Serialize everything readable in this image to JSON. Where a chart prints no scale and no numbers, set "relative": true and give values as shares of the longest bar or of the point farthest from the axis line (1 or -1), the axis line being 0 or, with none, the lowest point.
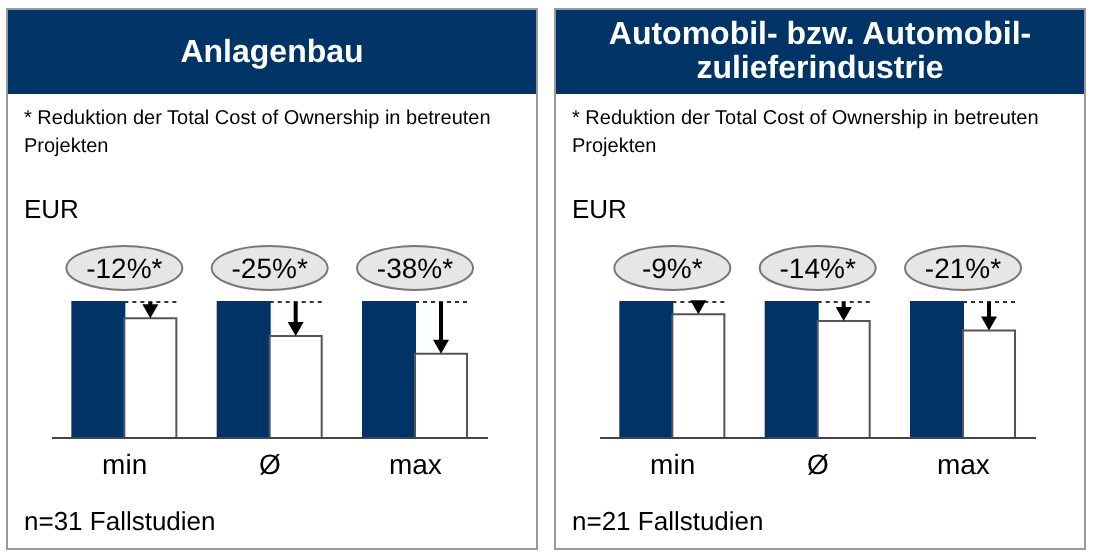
{
  "chart_data": [
    {
      "type": "bar",
      "title": "Anlagenbau",
      "subtitle": "* Reduktion der Total Cost of Ownership in betreuten Projekten",
      "ylabel": "EUR",
      "annotations": [
        "n=31 Fallstudien",
        {
          "text": "-12%*",
          "x": "min",
          "y": 0.88
        },
        {
          "text": "-25%*",
          "x": "Ø",
          "y": 0.75
        },
        {
          "text": "-38%*",
          "x": "max",
          "y": 0.62
        }
      ],
      "relative": true,
      "categories": [
        "min",
        "Ø",
        "max"
      ],
      "series": [
        {
          "color": "#003366",
          "values": [
            1,
            1,
            1
          ]
        },
        {
          "color": "#ffffff",
          "values": [
            0.88,
            0.75,
            0.62
          ]
        }
      ]
    },
    {
      "type": "bar",
      "title": "Automobil- bzw. Automobil-zulieferindustrie",
      "subtitle": "* Reduktion der Total Cost of Ownership in betreuten Projekten",
      "ylabel": "EUR",
      "annotations": [
        "n=21 Fallstudien",
        {
          "text": "-9%*",
          "x": "min",
          "y": 0.91
        },
        {
          "text": "-14%*",
          "x": "Ø",
          "y": 0.86
        },
        {
          "text": "-21%*",
          "x": "max",
          "y": 0.79
        }
      ],
      "relative": true,
      "categories": [
        "min",
        "Ø",
        "max"
      ],
      "series": [
        {
          "color": "#003366",
          "values": [
            1,
            1,
            1
          ]
        },
        {
          "color": "#ffffff",
          "values": [
            0.91,
            0.86,
            0.79
          ]
        }
      ]
    }
  ]
}
